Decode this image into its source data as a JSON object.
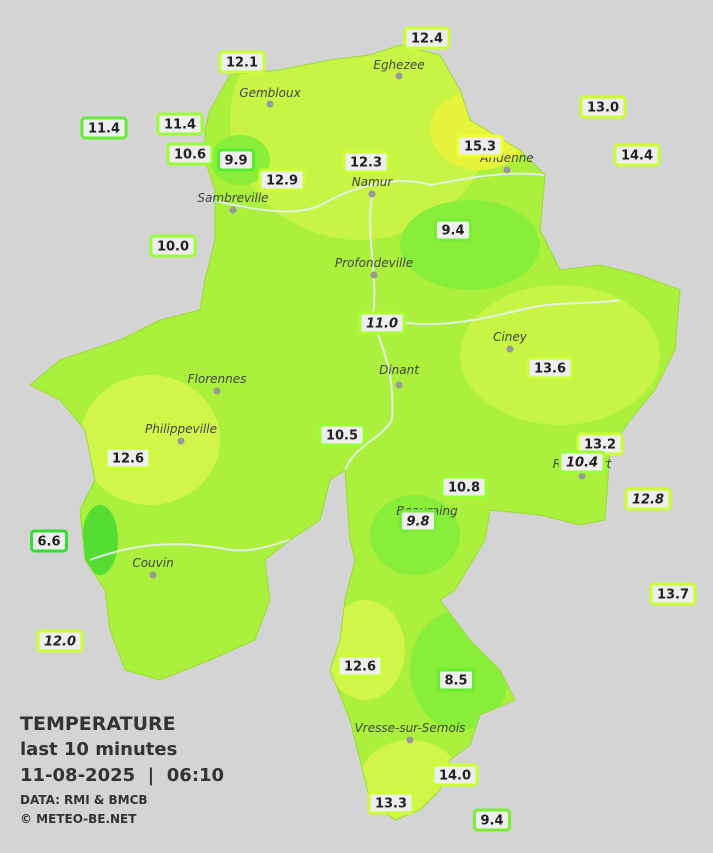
{
  "title": "TEMPERATURE",
  "subtitle": "last 10 minutes",
  "datetime": "11-08-2025  |  06:10",
  "source": "DATA: RMI & BMCB",
  "copyright": "© METEO-BE.NET",
  "cities": [
    "Eghezee",
    "Gembloux",
    "Andenne",
    "Namur",
    "Sambreville",
    "Profondeville",
    "Ciney",
    "Dinant",
    "Florennes",
    "Philippeville",
    "Rochefort",
    "Beauraing",
    "Couvin",
    "Vresse-sur-Semois"
  ],
  "stations": [
    {
      "value": "12.4",
      "italic": false,
      "color": "#ccff33"
    },
    {
      "value": "12.1",
      "italic": false,
      "color": "#ccff33"
    },
    {
      "value": "13.0",
      "italic": false,
      "color": "#ccff33"
    },
    {
      "value": "11.4",
      "italic": false,
      "color": "#66ee33"
    },
    {
      "value": "11.4",
      "italic": false,
      "color": "#99ff33"
    },
    {
      "value": "10.6",
      "italic": false,
      "color": "#99ff33"
    },
    {
      "value": "9.9",
      "italic": false,
      "color": "#55ee33"
    },
    {
      "value": "12.3",
      "italic": false,
      "color": "#ccff33"
    },
    {
      "value": "15.3",
      "italic": false,
      "color": "#eeff33"
    },
    {
      "value": "14.4",
      "italic": false,
      "color": "#ccff33"
    },
    {
      "value": "12.9",
      "italic": false,
      "color": "#ccff33"
    },
    {
      "value": "9.4",
      "italic": false,
      "color": "#77ee33"
    },
    {
      "value": "10.0",
      "italic": false,
      "color": "#99ff33"
    },
    {
      "value": "11.0",
      "italic": true,
      "color": "#aaff33"
    },
    {
      "value": "13.6",
      "italic": false,
      "color": "#ccff33"
    },
    {
      "value": "10.5",
      "italic": false,
      "color": "#99ff33"
    },
    {
      "value": "13.2",
      "italic": false,
      "color": "#ccff33"
    },
    {
      "value": "10.4",
      "italic": true,
      "color": "#99ff33"
    },
    {
      "value": "12.6",
      "italic": false,
      "color": "#ccff33"
    },
    {
      "value": "10.8",
      "italic": false,
      "color": "#99ff33"
    },
    {
      "value": "12.8",
      "italic": true,
      "color": "#ccff33"
    },
    {
      "value": "9.8",
      "italic": true,
      "color": "#77ee33"
    },
    {
      "value": "6.6",
      "italic": false,
      "color": "#33dd33"
    },
    {
      "value": "13.7",
      "italic": false,
      "color": "#ccff33"
    },
    {
      "value": "12.0",
      "italic": true,
      "color": "#ccff33"
    },
    {
      "value": "12.6",
      "italic": false,
      "color": "#ccff33"
    },
    {
      "value": "8.5",
      "italic": false,
      "color": "#66ee33"
    },
    {
      "value": "14.0",
      "italic": false,
      "color": "#ccff33"
    },
    {
      "value": "13.3",
      "italic": false,
      "color": "#ccff33"
    },
    {
      "value": "9.4",
      "italic": false,
      "color": "#77ee33"
    }
  ]
}
